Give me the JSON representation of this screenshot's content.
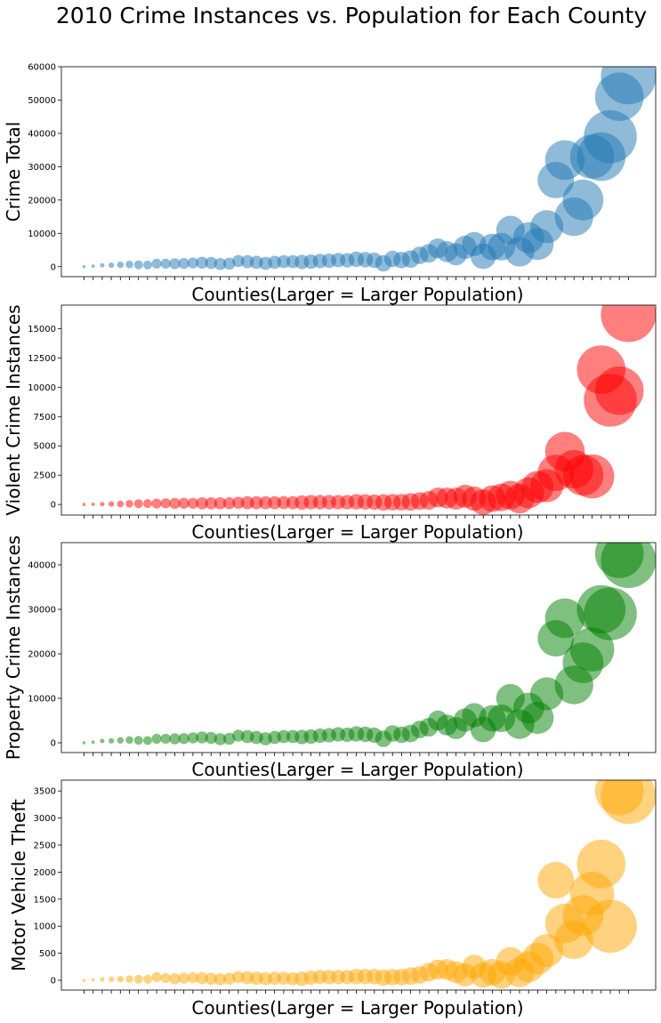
{
  "figure_title": "2010 Crime Instances vs. Population for Each County",
  "chart_data": [
    {
      "type": "scatter",
      "subtype": "bubble",
      "color": "#1f77b4",
      "xlabel": "Counties(Larger = Larger Population)",
      "ylabel": "Crime Total",
      "ylim": [
        -3000,
        60000
      ],
      "yticks": [
        0,
        10000,
        20000,
        30000,
        40000,
        50000,
        60000
      ],
      "x": [
        1,
        2,
        3,
        4,
        5,
        6,
        7,
        8,
        9,
        10,
        11,
        12,
        13,
        14,
        15,
        16,
        17,
        18,
        19,
        20,
        21,
        22,
        23,
        24,
        25,
        26,
        27,
        28,
        29,
        30,
        31,
        32,
        33,
        34,
        35,
        36,
        37,
        38,
        39,
        40,
        41,
        42,
        43,
        44,
        45,
        46,
        47,
        48,
        49,
        50,
        51,
        52,
        53,
        54,
        55,
        56,
        57,
        58,
        59,
        60,
        61
      ],
      "values": [
        0,
        150,
        400,
        450,
        550,
        650,
        550,
        500,
        900,
        900,
        900,
        950,
        1100,
        1200,
        1100,
        800,
        900,
        1700,
        1500,
        1300,
        1000,
        1300,
        1500,
        1500,
        1400,
        1500,
        1700,
        1800,
        2000,
        1900,
        2200,
        2100,
        1900,
        1000,
        2300,
        2000,
        2300,
        3400,
        4000,
        5500,
        4500,
        3700,
        5800,
        6800,
        3100,
        5900,
        6000,
        11000,
        4500,
        8700,
        6800,
        12000,
        26000,
        32000,
        15000,
        20000,
        33000,
        33000,
        39000,
        51000,
        57000
      ],
      "sizes": [
        1,
        3,
        4,
        5,
        6,
        7,
        8,
        8,
        9,
        9,
        10,
        10,
        10,
        11,
        11,
        11,
        11,
        11,
        12,
        12,
        12,
        12,
        12,
        12,
        13,
        13,
        13,
        13,
        13,
        13,
        14,
        14,
        14,
        15,
        15,
        15,
        16,
        16,
        17,
        18,
        19,
        20,
        21,
        22,
        23,
        24,
        25,
        26,
        27,
        28,
        29,
        30,
        33,
        36,
        35,
        37,
        40,
        44,
        48,
        44,
        50
      ]
    },
    {
      "type": "scatter",
      "subtype": "bubble",
      "color": "#ff0000",
      "xlabel": "Counties(Larger = Larger Population)",
      "ylabel": "Violent Crime Instances",
      "ylim": [
        -900,
        17000
      ],
      "yticks": [
        0,
        2500,
        5000,
        7500,
        10000,
        12500,
        15000
      ],
      "x": [
        1,
        2,
        3,
        4,
        5,
        6,
        7,
        8,
        9,
        10,
        11,
        12,
        13,
        14,
        15,
        16,
        17,
        18,
        19,
        20,
        21,
        22,
        23,
        24,
        25,
        26,
        27,
        28,
        29,
        30,
        31,
        32,
        33,
        34,
        35,
        36,
        37,
        38,
        39,
        40,
        41,
        42,
        43,
        44,
        45,
        46,
        47,
        48,
        49,
        50,
        51,
        52,
        53,
        54,
        55,
        56,
        57,
        58,
        59,
        60,
        61
      ],
      "values": [
        0,
        20,
        30,
        40,
        50,
        60,
        70,
        80,
        80,
        90,
        90,
        100,
        100,
        100,
        100,
        100,
        110,
        150,
        150,
        150,
        150,
        150,
        160,
        150,
        170,
        200,
        200,
        200,
        200,
        200,
        230,
        220,
        210,
        180,
        200,
        200,
        230,
        300,
        350,
        600,
        550,
        500,
        700,
        500,
        200,
        500,
        600,
        800,
        500,
        1000,
        1500,
        1600,
        2700,
        4500,
        3000,
        2500,
        2400,
        11500,
        8900,
        9700,
        16200
      ],
      "sizes": [
        1,
        3,
        4,
        5,
        6,
        7,
        8,
        8,
        9,
        9,
        10,
        10,
        10,
        11,
        11,
        11,
        11,
        11,
        12,
        12,
        12,
        12,
        12,
        12,
        13,
        13,
        13,
        13,
        13,
        13,
        14,
        14,
        14,
        15,
        15,
        15,
        16,
        16,
        17,
        18,
        19,
        20,
        21,
        22,
        23,
        24,
        25,
        26,
        27,
        28,
        29,
        30,
        33,
        36,
        35,
        37,
        40,
        44,
        48,
        44,
        50
      ]
    },
    {
      "type": "scatter",
      "subtype": "bubble",
      "color": "#008000",
      "xlabel": "Counties(Larger = Larger Population)",
      "ylabel": "Property Crime Instances",
      "ylim": [
        -2200,
        45000
      ],
      "yticks": [
        0,
        10000,
        20000,
        30000,
        40000
      ],
      "x": [
        1,
        2,
        3,
        4,
        5,
        6,
        7,
        8,
        9,
        10,
        11,
        12,
        13,
        14,
        15,
        16,
        17,
        18,
        19,
        20,
        21,
        22,
        23,
        24,
        25,
        26,
        27,
        28,
        29,
        30,
        31,
        32,
        33,
        34,
        35,
        36,
        37,
        38,
        39,
        40,
        41,
        42,
        43,
        44,
        45,
        46,
        47,
        48,
        49,
        50,
        51,
        52,
        53,
        54,
        55,
        56,
        57,
        58,
        59,
        60,
        61
      ],
      "values": [
        0,
        150,
        400,
        450,
        550,
        650,
        550,
        500,
        900,
        900,
        900,
        950,
        1100,
        1200,
        1100,
        800,
        900,
        1600,
        1400,
        1200,
        900,
        1200,
        1400,
        1400,
        1300,
        1400,
        1600,
        1700,
        1900,
        1800,
        2000,
        1900,
        1700,
        900,
        2100,
        1800,
        2100,
        3000,
        3500,
        5000,
        4000,
        3300,
        5100,
        6200,
        3000,
        5500,
        5500,
        10000,
        4200,
        7800,
        5600,
        11000,
        23500,
        28000,
        13000,
        18000,
        21000,
        30000,
        29000,
        42500,
        41000
      ],
      "sizes": [
        1,
        3,
        4,
        5,
        6,
        7,
        8,
        8,
        9,
        9,
        10,
        10,
        10,
        11,
        11,
        11,
        11,
        11,
        12,
        12,
        12,
        12,
        12,
        12,
        13,
        13,
        13,
        13,
        13,
        13,
        14,
        14,
        14,
        15,
        15,
        15,
        16,
        16,
        17,
        18,
        19,
        20,
        21,
        22,
        23,
        24,
        25,
        26,
        27,
        28,
        29,
        30,
        33,
        36,
        35,
        37,
        40,
        44,
        48,
        44,
        50
      ]
    },
    {
      "type": "scatter",
      "subtype": "bubble",
      "color": "#ffa500",
      "xlabel": "Counties(Larger = Larger Population)",
      "ylabel": "Motor Vehicle Theft",
      "ylim": [
        -180,
        3700
      ],
      "yticks": [
        0,
        500,
        1000,
        1500,
        2000,
        2500,
        3000,
        3500
      ],
      "x": [
        1,
        2,
        3,
        4,
        5,
        6,
        7,
        8,
        9,
        10,
        11,
        12,
        13,
        14,
        15,
        16,
        17,
        18,
        19,
        20,
        21,
        22,
        23,
        24,
        25,
        26,
        27,
        28,
        29,
        30,
        31,
        32,
        33,
        34,
        35,
        36,
        37,
        38,
        39,
        40,
        41,
        42,
        43,
        44,
        45,
        46,
        47,
        48,
        49,
        50,
        51,
        52,
        53,
        54,
        55,
        56,
        57,
        58,
        59,
        60,
        61
      ],
      "values": [
        0,
        10,
        15,
        20,
        20,
        25,
        20,
        20,
        60,
        40,
        30,
        40,
        50,
        40,
        30,
        20,
        30,
        60,
        50,
        40,
        30,
        40,
        40,
        30,
        30,
        50,
        60,
        60,
        60,
        60,
        70,
        70,
        70,
        50,
        60,
        60,
        80,
        100,
        150,
        200,
        200,
        150,
        100,
        250,
        100,
        150,
        100,
        350,
        150,
        250,
        400,
        550,
        1850,
        1050,
        750,
        1200,
        1600,
        2150,
        1000,
        3500,
        3400
      ],
      "sizes": [
        1,
        3,
        4,
        5,
        6,
        7,
        8,
        8,
        9,
        9,
        10,
        10,
        10,
        11,
        11,
        11,
        11,
        11,
        12,
        12,
        12,
        12,
        12,
        12,
        13,
        13,
        13,
        13,
        13,
        13,
        14,
        14,
        14,
        15,
        15,
        15,
        16,
        16,
        17,
        18,
        19,
        20,
        21,
        22,
        23,
        24,
        25,
        26,
        27,
        28,
        29,
        30,
        33,
        36,
        35,
        37,
        40,
        44,
        48,
        44,
        50
      ]
    }
  ]
}
